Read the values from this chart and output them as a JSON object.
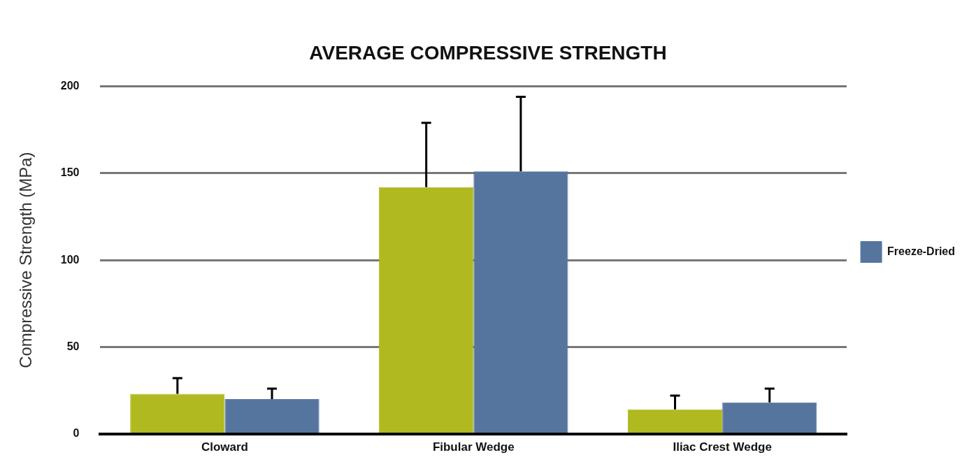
{
  "chart_data": {
    "type": "bar",
    "title": "AVERAGE COMPRESSIVE STRENGTH",
    "ylabel": "Compressive Strength (MPa)",
    "categories": [
      "Cloward",
      "Fibular Wedge",
      "Iliac Crest Wedge"
    ],
    "series": [
      {
        "color": "#b0b91f",
        "values": [
          23,
          142,
          14
        ],
        "errors": [
          [
            23,
            32
          ],
          [
            142,
            179
          ],
          [
            14,
            22
          ]
        ]
      },
      {
        "name": "Freeze-Dried",
        "color": "#56759e",
        "values": [
          20,
          151,
          18
        ],
        "errors": [
          [
            20,
            26
          ],
          [
            151,
            194
          ],
          [
            18,
            26
          ]
        ]
      }
    ],
    "ylim": [
      0,
      200
    ],
    "yticks": [
      0,
      50,
      100,
      150,
      200
    ],
    "grid": "y",
    "legend": "right"
  }
}
